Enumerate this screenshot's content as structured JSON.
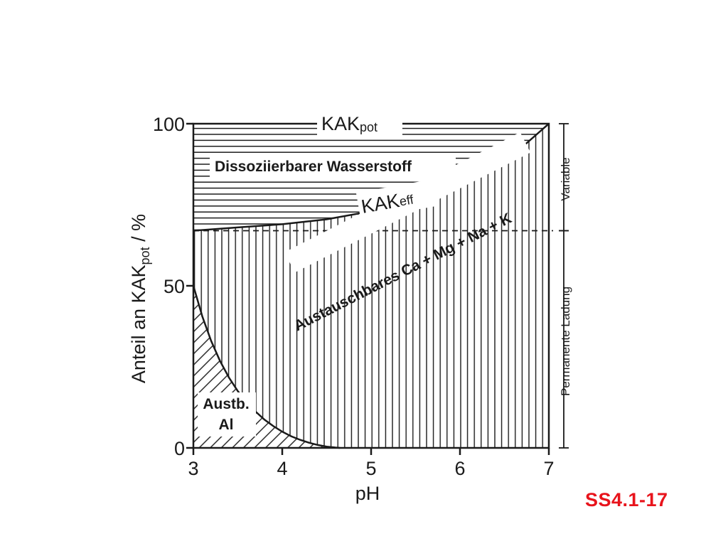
{
  "chart_data": {
    "type": "area",
    "x_label": "pH",
    "y_label_main": "Anteil an KAK",
    "y_label_sub": "pot",
    "y_label_unit": " / %",
    "x_ticks": [
      "3",
      "4",
      "5",
      "6",
      "7"
    ],
    "y_ticks": [
      "0",
      "50",
      "100"
    ],
    "xlim": [
      3,
      7
    ],
    "ylim": [
      0,
      100
    ],
    "grid": false,
    "boundaries": [
      {
        "name": "KAK",
        "name_sub": "pot",
        "x": [
          3,
          7
        ],
        "y": [
          100,
          100
        ]
      },
      {
        "name": "KAK",
        "name_sub": "eff",
        "x": [
          3.0,
          3.5,
          4.0,
          4.5,
          5.0,
          5.5,
          6.0,
          6.5,
          7.0
        ],
        "y": [
          67,
          68,
          69,
          70.5,
          73,
          76.5,
          81,
          88,
          100
        ]
      },
      {
        "name": "",
        "x": [
          3.0,
          3.1,
          3.2,
          3.3,
          3.4,
          3.5,
          3.6,
          3.7,
          3.8,
          3.9,
          4.0,
          4.1,
          4.2,
          4.3,
          4.4,
          4.5,
          4.6,
          4.65
        ],
        "y": [
          50,
          40.6,
          33,
          26.8,
          21.7,
          17.5,
          14.1,
          11.2,
          8.7,
          6.7,
          5,
          3.6,
          2.5,
          1.6,
          0.9,
          0.4,
          0.1,
          0
        ]
      }
    ],
    "regions": [
      {
        "label": "Dissoziierbarer Wasserstoff",
        "pattern": "horizontal"
      },
      {
        "label": "Austauschbares Ca + Mg + Na + K",
        "pattern": "vertical"
      },
      {
        "label_lines": [
          "Austb.",
          "Al"
        ],
        "pattern": "diagonal"
      }
    ],
    "reference_line": {
      "y": 67,
      "style": "dashed"
    },
    "side_annotations": [
      {
        "label": "Variable",
        "from": 67,
        "to": 100
      },
      {
        "label": "Permanente Ladung",
        "from": 0,
        "to": 67
      }
    ]
  },
  "footer": {
    "code": "SS4.1-17"
  }
}
